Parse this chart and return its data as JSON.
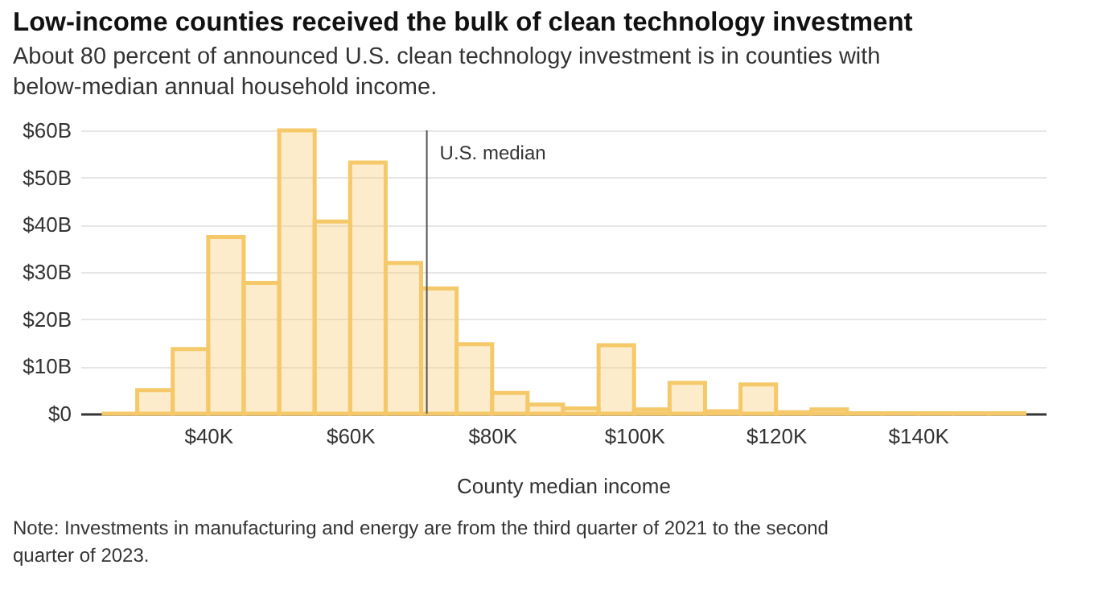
{
  "chart_data": {
    "type": "histogram",
    "title": "Low-income counties received the bulk of clean technology investment",
    "subtitle": "About 80 percent of announced U.S. clean technology investment is in counties with below-median annual household income.",
    "xlabel": "County median income",
    "bins": [
      25000,
      30000,
      35000,
      40000,
      45000,
      50000,
      55000,
      60000,
      65000,
      70000,
      75000,
      80000,
      85000,
      90000,
      95000,
      100000,
      105000,
      110000,
      115000,
      120000,
      125000,
      130000,
      135000,
      140000,
      145000,
      150000,
      155000
    ],
    "values": [
      0,
      5,
      13.7,
      37.4,
      27.7,
      60,
      40.7,
      53.2,
      31.9,
      26.5,
      14.7,
      4.4,
      1.9,
      1.1,
      14.5,
      0.9,
      6.5,
      0.5,
      6.2,
      0.3,
      0.9,
      0.1,
      0.1,
      0.1,
      0.1,
      0.1
    ],
    "color": "#f5c96a",
    "xlim": [
      22000,
      158000
    ],
    "xticks": [
      {
        "value": 40000,
        "label": "$40K"
      },
      {
        "value": 60000,
        "label": "$60K"
      },
      {
        "value": 80000,
        "label": "$80K"
      },
      {
        "value": 100000,
        "label": "$100K"
      },
      {
        "value": 120000,
        "label": "$120K"
      },
      {
        "value": 140000,
        "label": "$140K"
      }
    ],
    "ylim": [
      0,
      60
    ],
    "yticks": [
      {
        "value": 0,
        "label": "$0"
      },
      {
        "value": 10,
        "label": "$10B"
      },
      {
        "value": 20,
        "label": "$20B"
      },
      {
        "value": 30,
        "label": "$30B"
      },
      {
        "value": 40,
        "label": "$40B"
      },
      {
        "value": 50,
        "label": "$50B"
      },
      {
        "value": 60,
        "label": "$60B"
      }
    ],
    "grid": "y",
    "ref_lines": [
      {
        "axis": "x",
        "value": 70800,
        "label": "U.S. median",
        "color": "#555555"
      }
    ],
    "annotations": [
      "Note: Investments in manufacturing and energy are from the third quarter of 2021 to the second quarter of 2023."
    ]
  }
}
